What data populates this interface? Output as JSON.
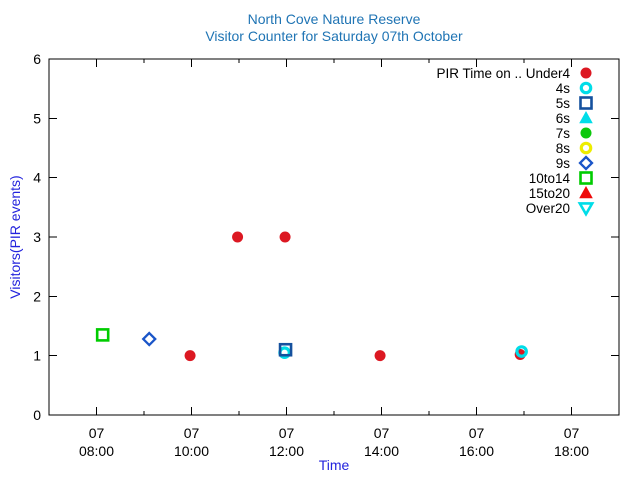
{
  "title": {
    "line1": "North Cove Nature Reserve",
    "line2": "Visitor Counter for Saturday 07th October",
    "color": "#1f74b4"
  },
  "axes": {
    "x": {
      "label": "Time",
      "label_color": "#2323dd",
      "axis_color": "#000000",
      "major_ticks": [
        {
          "hour": 8,
          "line1": "07",
          "line2": "08:00"
        },
        {
          "hour": 10,
          "line1": "07",
          "line2": "10:00"
        },
        {
          "hour": 12,
          "line1": "07",
          "line2": "12:00"
        },
        {
          "hour": 14,
          "line1": "07",
          "line2": "14:00"
        },
        {
          "hour": 16,
          "line1": "07",
          "line2": "16:00"
        },
        {
          "hour": 18,
          "line1": "07",
          "line2": "18:00"
        }
      ],
      "minor_tick_hours": [
        9,
        11,
        13,
        15,
        17
      ]
    },
    "y": {
      "label": "Visitors(PIR events)",
      "label_color": "#2323dd",
      "ticks": [
        "0",
        "1",
        "2",
        "3",
        "4",
        "5",
        "6"
      ]
    }
  },
  "chart_data": {
    "type": "scatter",
    "title": "North Cove Nature Reserve - Visitor Counter for Saturday 07th October",
    "xlabel": "Time",
    "ylabel": "Visitors(PIR events)",
    "x_axis": {
      "unit": "hour_of_day_07_oct",
      "min": 7,
      "max": 19
    },
    "ylim": [
      0,
      6
    ],
    "grid": false,
    "legend_position": "top-right-inside",
    "series": [
      {
        "name": "PIR Time on .. Under4",
        "marker": "circle-filled",
        "color": "#dc1822",
        "points": [
          [
            9.97,
            1.0
          ],
          [
            10.97,
            3.0
          ],
          [
            11.97,
            3.0
          ],
          [
            13.97,
            1.0
          ],
          [
            16.92,
            1.02
          ]
        ]
      },
      {
        "name": "4s",
        "marker": "circle-open",
        "color": "#00dde8",
        "points": [
          [
            11.96,
            1.05
          ],
          [
            16.95,
            1.07
          ]
        ]
      },
      {
        "name": "5s",
        "marker": "square-open",
        "color": "#15519e",
        "points": [
          [
            11.98,
            1.1
          ]
        ]
      },
      {
        "name": "6s",
        "marker": "triangle-up-filled",
        "color": "#00dde8",
        "points": []
      },
      {
        "name": "7s",
        "marker": "circle-filled",
        "color": "#0cc80c",
        "points": []
      },
      {
        "name": "8s",
        "marker": "circle-open",
        "color": "#eded00",
        "points": []
      },
      {
        "name": "9s",
        "marker": "diamond-open",
        "color": "#1a55c8",
        "points": [
          [
            9.11,
            1.28
          ]
        ]
      },
      {
        "name": "10to14",
        "marker": "square-open",
        "color": "#00cc00",
        "points": [
          [
            8.13,
            1.35
          ]
        ]
      },
      {
        "name": "15to20",
        "marker": "triangle-up-filled",
        "color": "#ee0a0a",
        "points": []
      },
      {
        "name": "Over20",
        "marker": "triangle-down-open",
        "color": "#00dde8",
        "points": []
      }
    ]
  }
}
